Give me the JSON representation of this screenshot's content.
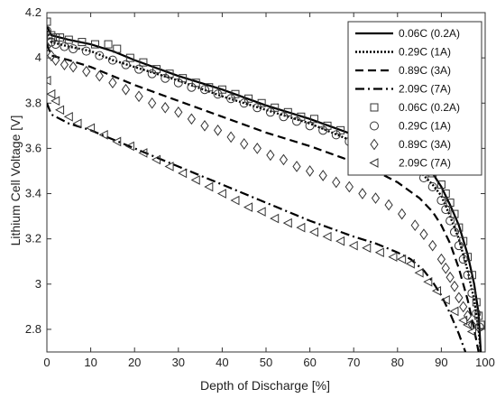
{
  "chart_data": {
    "type": "line",
    "title": "",
    "xlabel": "Depth of Discharge [%]",
    "ylabel": "Lithium Cell Voltage [V]",
    "xlim": [
      0,
      100
    ],
    "ylim": [
      2.7,
      4.2
    ],
    "xticks": [
      0,
      10,
      20,
      30,
      40,
      50,
      60,
      70,
      80,
      90,
      100
    ],
    "yticks": [
      2.8,
      3,
      3.2,
      3.4,
      3.6,
      3.8,
      4,
      4.2
    ],
    "xtick_labels": [
      "0",
      "10",
      "20",
      "30",
      "40",
      "50",
      "60",
      "70",
      "80",
      "90",
      "100"
    ],
    "ytick_labels": [
      "2.8",
      "3",
      "3.2",
      "3.4",
      "3.6",
      "3.8",
      "4",
      "4.2"
    ],
    "grid": false,
    "legend_position": "top-right",
    "series": [
      {
        "name": "0.06C (0.2A)",
        "style": "solid",
        "points": [
          [
            0,
            4.14
          ],
          [
            1,
            4.1
          ],
          [
            5,
            4.08
          ],
          [
            10,
            4.06
          ],
          [
            15,
            4.03
          ],
          [
            20,
            3.99
          ],
          [
            30,
            3.92
          ],
          [
            40,
            3.86
          ],
          [
            50,
            3.79
          ],
          [
            60,
            3.73
          ],
          [
            70,
            3.66
          ],
          [
            75,
            3.63
          ],
          [
            80,
            3.59
          ],
          [
            85,
            3.54
          ],
          [
            88,
            3.49
          ],
          [
            90,
            3.43
          ],
          [
            92,
            3.35
          ],
          [
            94,
            3.26
          ],
          [
            96,
            3.13
          ],
          [
            97.5,
            3.0
          ],
          [
            98.5,
            2.87
          ],
          [
            99,
            2.7
          ]
        ]
      },
      {
        "name": "0.29C (1A)",
        "style": "dotted",
        "points": [
          [
            0,
            4.12
          ],
          [
            1,
            4.07
          ],
          [
            5,
            4.05
          ],
          [
            10,
            4.03
          ],
          [
            15,
            3.99
          ],
          [
            20,
            3.96
          ],
          [
            30,
            3.9
          ],
          [
            40,
            3.83
          ],
          [
            50,
            3.77
          ],
          [
            60,
            3.71
          ],
          [
            70,
            3.63
          ],
          [
            75,
            3.6
          ],
          [
            80,
            3.56
          ],
          [
            85,
            3.5
          ],
          [
            88,
            3.44
          ],
          [
            90,
            3.39
          ],
          [
            92,
            3.3
          ],
          [
            94,
            3.2
          ],
          [
            96,
            3.06
          ],
          [
            97.5,
            2.93
          ],
          [
            98.5,
            2.8
          ],
          [
            99,
            2.7
          ]
        ]
      },
      {
        "name": "0.89C (3A)",
        "style": "dashed",
        "points": [
          [
            0,
            4.06
          ],
          [
            1,
            4.01
          ],
          [
            5,
            3.99
          ],
          [
            10,
            3.96
          ],
          [
            15,
            3.92
          ],
          [
            20,
            3.88
          ],
          [
            30,
            3.81
          ],
          [
            40,
            3.74
          ],
          [
            50,
            3.67
          ],
          [
            60,
            3.61
          ],
          [
            70,
            3.54
          ],
          [
            75,
            3.5
          ],
          [
            80,
            3.45
          ],
          [
            85,
            3.38
          ],
          [
            88,
            3.32
          ],
          [
            90,
            3.26
          ],
          [
            92,
            3.18
          ],
          [
            94,
            3.07
          ],
          [
            96,
            2.93
          ],
          [
            97.5,
            2.8
          ],
          [
            98.5,
            2.7
          ]
        ]
      },
      {
        "name": "2.09C (7A)",
        "style": "dashdot",
        "points": [
          [
            0,
            3.8
          ],
          [
            1,
            3.75
          ],
          [
            5,
            3.71
          ],
          [
            10,
            3.68
          ],
          [
            15,
            3.64
          ],
          [
            20,
            3.6
          ],
          [
            30,
            3.52
          ],
          [
            40,
            3.44
          ],
          [
            50,
            3.36
          ],
          [
            60,
            3.28
          ],
          [
            70,
            3.21
          ],
          [
            75,
            3.18
          ],
          [
            80,
            3.14
          ],
          [
            83,
            3.11
          ],
          [
            86,
            3.06
          ],
          [
            88,
            3.01
          ],
          [
            90,
            2.95
          ],
          [
            92,
            2.87
          ],
          [
            94,
            2.78
          ],
          [
            95.5,
            2.7
          ]
        ]
      }
    ],
    "markers": [
      {
        "name": "0.06C (0.2A)",
        "marker": "square",
        "points": [
          [
            0,
            4.16
          ],
          [
            1,
            4.1
          ],
          [
            2,
            4.09
          ],
          [
            3,
            4.09
          ],
          [
            5,
            4.08
          ],
          [
            8,
            4.07
          ],
          [
            11,
            4.06
          ],
          [
            14,
            4.06
          ],
          [
            16,
            4.04
          ],
          [
            19,
            4.0
          ],
          [
            22,
            3.98
          ],
          [
            25,
            3.95
          ],
          [
            28,
            3.93
          ],
          [
            31,
            3.91
          ],
          [
            34,
            3.89
          ],
          [
            37,
            3.87
          ],
          [
            40,
            3.86
          ],
          [
            43,
            3.84
          ],
          [
            46,
            3.82
          ],
          [
            49,
            3.8
          ],
          [
            52,
            3.78
          ],
          [
            55,
            3.76
          ],
          [
            58,
            3.74
          ],
          [
            61,
            3.73
          ],
          [
            64,
            3.7
          ],
          [
            67,
            3.68
          ],
          [
            70,
            3.66
          ],
          [
            73,
            3.64
          ],
          [
            76,
            3.62
          ],
          [
            79,
            3.6
          ],
          [
            82,
            3.57
          ],
          [
            84,
            3.55
          ],
          [
            86,
            3.52
          ],
          [
            88,
            3.49
          ],
          [
            90,
            3.44
          ],
          [
            91,
            3.4
          ],
          [
            92,
            3.36
          ],
          [
            93,
            3.31
          ],
          [
            94,
            3.25
          ],
          [
            95,
            3.19
          ],
          [
            96,
            3.12
          ],
          [
            97,
            3.04
          ],
          [
            98,
            2.92
          ],
          [
            98.5,
            2.86
          ],
          [
            99,
            2.82
          ]
        ]
      },
      {
        "name": "0.29C (1A)",
        "marker": "circle",
        "points": [
          [
            0,
            4.12
          ],
          [
            1,
            4.07
          ],
          [
            2,
            4.06
          ],
          [
            4,
            4.05
          ],
          [
            6,
            4.04
          ],
          [
            9,
            4.03
          ],
          [
            12,
            4.01
          ],
          [
            15,
            3.99
          ],
          [
            18,
            3.97
          ],
          [
            21,
            3.95
          ],
          [
            24,
            3.93
          ],
          [
            27,
            3.91
          ],
          [
            30,
            3.89
          ],
          [
            33,
            3.87
          ],
          [
            36,
            3.86
          ],
          [
            39,
            3.84
          ],
          [
            42,
            3.82
          ],
          [
            45,
            3.8
          ],
          [
            48,
            3.78
          ],
          [
            51,
            3.76
          ],
          [
            54,
            3.74
          ],
          [
            57,
            3.72
          ],
          [
            60,
            3.7
          ],
          [
            63,
            3.68
          ],
          [
            66,
            3.66
          ],
          [
            69,
            3.63
          ],
          [
            72,
            3.61
          ],
          [
            75,
            3.59
          ],
          [
            78,
            3.57
          ],
          [
            81,
            3.54
          ],
          [
            84,
            3.5
          ],
          [
            86,
            3.47
          ],
          [
            88,
            3.43
          ],
          [
            90,
            3.37
          ],
          [
            91,
            3.33
          ],
          [
            92,
            3.28
          ],
          [
            93,
            3.23
          ],
          [
            94,
            3.17
          ],
          [
            95,
            3.11
          ],
          [
            96,
            3.04
          ],
          [
            97,
            2.96
          ],
          [
            98,
            2.87
          ],
          [
            98.7,
            2.81
          ]
        ]
      },
      {
        "name": "0.89C (3A)",
        "marker": "diamond",
        "points": [
          [
            0,
            4.05
          ],
          [
            1,
            4.01
          ],
          [
            2,
            3.99
          ],
          [
            4,
            3.97
          ],
          [
            6,
            3.96
          ],
          [
            9,
            3.94
          ],
          [
            12,
            3.92
          ],
          [
            15,
            3.89
          ],
          [
            18,
            3.86
          ],
          [
            21,
            3.83
          ],
          [
            24,
            3.8
          ],
          [
            27,
            3.78
          ],
          [
            30,
            3.76
          ],
          [
            33,
            3.73
          ],
          [
            36,
            3.7
          ],
          [
            39,
            3.68
          ],
          [
            42,
            3.65
          ],
          [
            45,
            3.62
          ],
          [
            48,
            3.6
          ],
          [
            51,
            3.57
          ],
          [
            54,
            3.55
          ],
          [
            57,
            3.52
          ],
          [
            60,
            3.5
          ],
          [
            63,
            3.48
          ],
          [
            66,
            3.45
          ],
          [
            69,
            3.43
          ],
          [
            72,
            3.4
          ],
          [
            75,
            3.38
          ],
          [
            78,
            3.35
          ],
          [
            81,
            3.31
          ],
          [
            84,
            3.26
          ],
          [
            86,
            3.22
          ],
          [
            88,
            3.17
          ],
          [
            90,
            3.11
          ],
          [
            91,
            3.07
          ],
          [
            92,
            3.03
          ],
          [
            93,
            2.99
          ],
          [
            94,
            2.94
          ],
          [
            95,
            2.9
          ],
          [
            96,
            2.86
          ],
          [
            97,
            2.82
          ]
        ]
      },
      {
        "name": "2.09C (7A)",
        "marker": "triangle-left",
        "points": [
          [
            0,
            3.9
          ],
          [
            1,
            3.84
          ],
          [
            2,
            3.81
          ],
          [
            3,
            3.77
          ],
          [
            5,
            3.74
          ],
          [
            7,
            3.71
          ],
          [
            10,
            3.69
          ],
          [
            13,
            3.66
          ],
          [
            16,
            3.63
          ],
          [
            19,
            3.61
          ],
          [
            22,
            3.58
          ],
          [
            25,
            3.55
          ],
          [
            28,
            3.52
          ],
          [
            31,
            3.49
          ],
          [
            34,
            3.46
          ],
          [
            37,
            3.43
          ],
          [
            40,
            3.4
          ],
          [
            43,
            3.37
          ],
          [
            46,
            3.34
          ],
          [
            49,
            3.32
          ],
          [
            52,
            3.29
          ],
          [
            55,
            3.27
          ],
          [
            58,
            3.25
          ],
          [
            61,
            3.23
          ],
          [
            64,
            3.21
          ],
          [
            67,
            3.19
          ],
          [
            70,
            3.17
          ],
          [
            73,
            3.16
          ],
          [
            76,
            3.14
          ],
          [
            79,
            3.12
          ],
          [
            81,
            3.11
          ],
          [
            83,
            3.09
          ],
          [
            85,
            3.05
          ],
          [
            87,
            3.01
          ],
          [
            89,
            2.97
          ],
          [
            91,
            2.93
          ],
          [
            93,
            2.88
          ],
          [
            95,
            2.84
          ],
          [
            96,
            2.82
          ],
          [
            97,
            2.79
          ]
        ]
      }
    ]
  }
}
